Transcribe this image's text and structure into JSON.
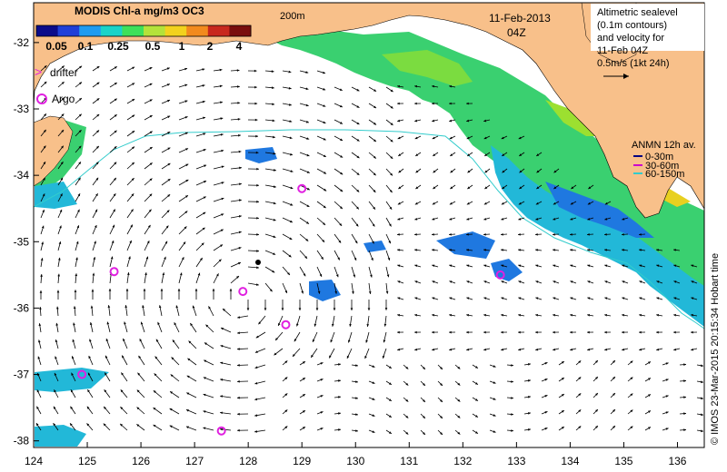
{
  "colorbar": {
    "title": "MODIS Chl-a mg/m3 OC3",
    "ticks": [
      "0.05",
      "0.1",
      "0.25",
      "0.5",
      "1",
      "2",
      "4"
    ],
    "colors": [
      "#0b0b8a",
      "#1f3fd8",
      "#1e9bf0",
      "#19d3c8",
      "#3ee05a",
      "#b4e23a",
      "#f2d21e",
      "#f28a1e",
      "#c8281e",
      "#7a0e0e"
    ]
  },
  "date_label": "11-Feb-2013",
  "time_label": "04Z",
  "contour_label": "200m",
  "legend": {
    "drifter": "drifter",
    "argo": "Argo"
  },
  "altimetry_box": {
    "line1": "Altimetric sealevel",
    "line2": "(0.1m contours)",
    "line3": "and velocity for",
    "line4": "11-Feb 04Z",
    "line5": "0.5m/s (1kt 24h)"
  },
  "anmn_legend": {
    "title": "ANMN 12h av.",
    "items": [
      {
        "label": "0-30m",
        "color": "#000080"
      },
      {
        "label": "30-60m",
        "color": "#cc00cc"
      },
      {
        "label": "60-150m",
        "color": "#33cccc"
      }
    ]
  },
  "credit": "© IMOS 23-Mar-2015 20:15:34 Hobart time",
  "x_axis": {
    "ticks": [
      "124",
      "125",
      "126",
      "127",
      "128",
      "129",
      "130",
      "131",
      "132",
      "133",
      "134",
      "135",
      "136"
    ]
  },
  "y_axis": {
    "ticks": [
      "-32",
      "-33",
      "-34",
      "-35",
      "-36",
      "-37",
      "-38"
    ]
  },
  "argo_floats": [
    {
      "lon": 129.0,
      "lat": -34.2
    },
    {
      "lon": 125.5,
      "lat": -35.45
    },
    {
      "lon": 127.9,
      "lat": -35.75
    },
    {
      "lon": 128.7,
      "lat": -36.25
    },
    {
      "lon": 124.9,
      "lat": -37.0
    },
    {
      "lon": 127.5,
      "lat": -37.85
    },
    {
      "lon": 132.7,
      "lat": -35.5
    }
  ],
  "colors": {
    "land": "#f8c08a",
    "ocean": "#ffffff",
    "argo": "#e020e0",
    "contour": "#33cccc",
    "arrow": "#000000"
  }
}
